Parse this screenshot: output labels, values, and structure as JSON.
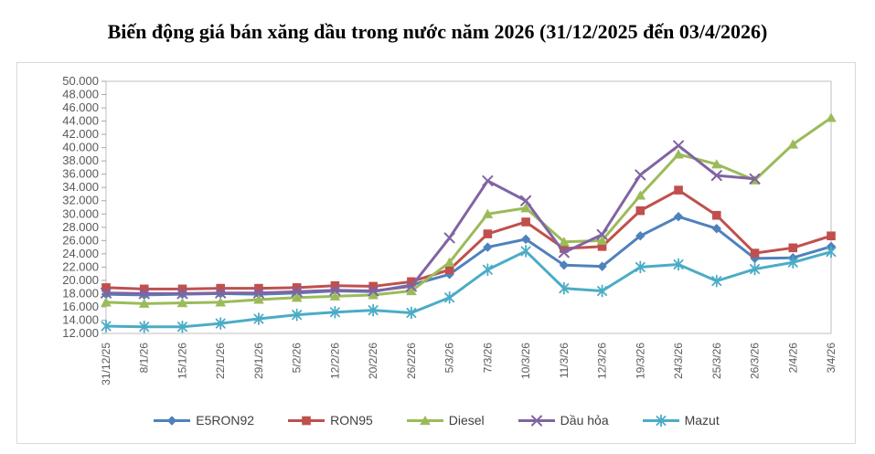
{
  "title": "Biến động giá bán xăng dầu trong nước năm 2026 (31/12/2025 đến 03/4/2026)",
  "chart_data": {
    "type": "line",
    "title": "Biến động giá bán xăng dầu trong nước năm 2026 (31/12/2025 đến 03/4/2026)",
    "xlabel": "",
    "ylabel": "",
    "ylim": [
      12000,
      50000
    ],
    "ytick_step": 2000,
    "ytick_labels": [
      "50.000",
      "48.000",
      "46.000",
      "44.000",
      "42.000",
      "40.000",
      "38.000",
      "36.000",
      "34.000",
      "32.000",
      "30.000",
      "28.000",
      "26.000",
      "24.000",
      "22.000",
      "20.000",
      "18.000",
      "16.000",
      "14.000",
      "12.000"
    ],
    "grid": false,
    "legend_position": "bottom",
    "axis_label_color": "#595959",
    "axis_line_color": "#bfbfbf",
    "categories": [
      "31/12/25",
      "8/1/26",
      "15/1/26",
      "22/1/26",
      "29/1/26",
      "5/2/26",
      "12/2/26",
      "20/2/26",
      "26/2/26",
      "5/3/26",
      "7/3/26",
      "10/3/26",
      "11/3/26",
      "12/3/26",
      "19/3/26",
      "24/3/26",
      "25/3/26",
      "26/3/26",
      "2/4/26",
      "3/4/26"
    ],
    "series": [
      {
        "name": "E5RON92",
        "color": "#4F81BD",
        "marker": "diamond",
        "values": [
          17900,
          17800,
          17900,
          18000,
          17900,
          18100,
          18400,
          18300,
          19300,
          20900,
          25000,
          26200,
          22300,
          22100,
          26700,
          29600,
          27800,
          23300,
          23400,
          25100
        ]
      },
      {
        "name": "RON95",
        "color": "#C0504D",
        "marker": "square",
        "values": [
          18900,
          18700,
          18700,
          18800,
          18800,
          18900,
          19200,
          19100,
          19800,
          21600,
          27000,
          28800,
          24800,
          25100,
          30500,
          33600,
          29800,
          24100,
          24900,
          26700
        ]
      },
      {
        "name": "Diesel",
        "color": "#9BBB59",
        "marker": "triangle",
        "values": [
          16700,
          16500,
          16600,
          16700,
          17100,
          17400,
          17600,
          17800,
          18400,
          22700,
          30000,
          30900,
          25800,
          26000,
          32800,
          39000,
          37500,
          35100,
          40500,
          44500
        ]
      },
      {
        "name": "Dầu hỏa",
        "color": "#8064A2",
        "marker": "x",
        "values": [
          18100,
          18000,
          18000,
          18100,
          18100,
          18300,
          18500,
          18400,
          19100,
          26400,
          35000,
          32000,
          24200,
          26900,
          35900,
          40300,
          35800,
          35300,
          null,
          null
        ]
      },
      {
        "name": "Mazut",
        "color": "#4BACC6",
        "marker": "asterisk",
        "values": [
          13100,
          13000,
          13000,
          13500,
          14200,
          14800,
          15200,
          15500,
          15100,
          17400,
          21600,
          24400,
          18800,
          18400,
          22000,
          22400,
          19900,
          21700,
          22700,
          24300
        ]
      }
    ]
  }
}
